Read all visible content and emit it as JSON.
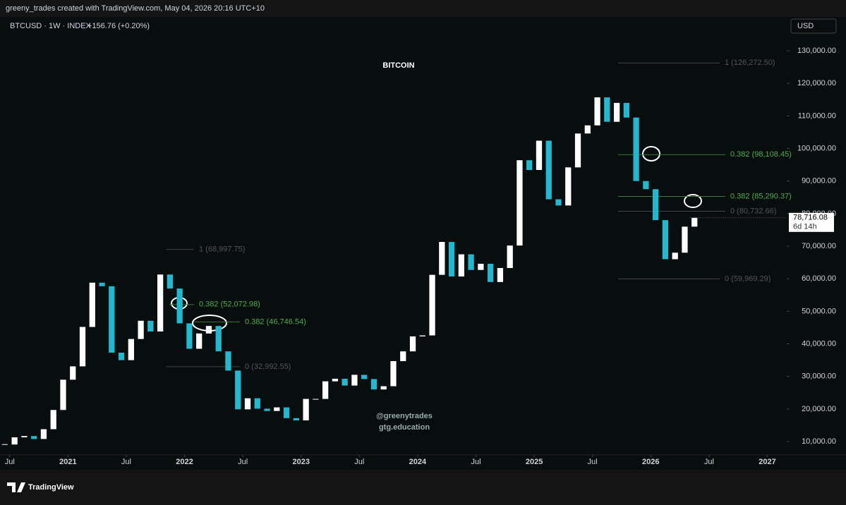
{
  "header": {
    "credit": "greeny_trades created with TradingView.com, May 04, 2026 20:16 UTC+10",
    "symbol": "BTCUSD · 1W · INDEX",
    "change": "+156.76 (+0.20%)",
    "currency": "USD"
  },
  "watermark": {
    "handle": "@greenytrades",
    "site": "gtg.education"
  },
  "footer": {
    "brand": "TradingView"
  },
  "chart_data": {
    "type": "candlestick",
    "title": "BITCOIN",
    "x": [
      "2020-06",
      "2020-07",
      "2020-08",
      "2020-09",
      "2020-10",
      "2020-11",
      "2020-12",
      "2021-01",
      "2021-02",
      "2021-03",
      "2021-04",
      "2021-05",
      "2021-06",
      "2021-07",
      "2021-08",
      "2021-09",
      "2021-10",
      "2021-11",
      "2021-12",
      "2022-01",
      "2022-02",
      "2022-03",
      "2022-04",
      "2022-05",
      "2022-06",
      "2022-07",
      "2022-08",
      "2022-09",
      "2022-10",
      "2022-11",
      "2022-12",
      "2023-01",
      "2023-02",
      "2023-03",
      "2023-04",
      "2023-05",
      "2023-06",
      "2023-07",
      "2023-08",
      "2023-09",
      "2023-10",
      "2023-11",
      "2023-12",
      "2024-01",
      "2024-02",
      "2024-03",
      "2024-04",
      "2024-05",
      "2024-06",
      "2024-07",
      "2024-08",
      "2024-09",
      "2024-10",
      "2024-11",
      "2024-12",
      "2025-01",
      "2025-02",
      "2025-03",
      "2025-04",
      "2025-05",
      "2025-06",
      "2025-07",
      "2025-08",
      "2025-09",
      "2025-10",
      "2025-11",
      "2025-12",
      "2026-01",
      "2026-02",
      "2026-03",
      "2026-04",
      "2026-05"
    ],
    "series": [
      {
        "name": "BTCUSD",
        "up_color": "#ffffff",
        "down_color": "#22b8cf",
        "values": [
          9100,
          11300,
          11700,
          10800,
          13800,
          19700,
          29000,
          33100,
          45200,
          58800,
          57700,
          37300,
          35000,
          41500,
          47100,
          43800,
          61300,
          57000,
          46300,
          38500,
          43200,
          45500,
          37700,
          31800,
          19900,
          23300,
          20100,
          19400,
          20500,
          17200,
          16500,
          23100,
          23100,
          28500,
          29300,
          27200,
          30500,
          29200,
          26000,
          27000,
          34700,
          37700,
          42300,
          42600,
          61200,
          71300,
          60700,
          67500,
          62700,
          64600,
          59000,
          63300,
          70200,
          96400,
          93400,
          102400,
          84400,
          82500,
          94200,
          104600,
          107100,
          115700,
          108200,
          114000,
          109500,
          90000,
          87500,
          78000,
          66000,
          68000,
          76000,
          78716.08
        ]
      }
    ],
    "last_price": {
      "value": 78716.08,
      "label": "78,716.08"
    },
    "countdown": "6d 14h",
    "fib_levels": [
      {
        "value": 68997.75,
        "label": "1 (68,997.75)"
      },
      {
        "value": 52072.98,
        "label": "0.382 (52,072.98)"
      },
      {
        "value": 46746.54,
        "label": "0.382 (46,746.54)"
      },
      {
        "value": 32992.55,
        "label": "0 (32,992.55)"
      },
      {
        "value": 126272.5,
        "label": "1 (126,272.50)"
      },
      {
        "value": 98108.45,
        "label": "0.382 (98,108.45)"
      },
      {
        "value": 85290.37,
        "label": "0.382 (85,290.37)"
      },
      {
        "value": 80732.66,
        "label": "0 (80,732.66)"
      },
      {
        "value": 59969.29,
        "label": "0 (59,969.29)"
      }
    ],
    "xlim": [
      "2020-06",
      "2027-03"
    ],
    "xticks": [
      {
        "value": "2020-07",
        "label": "Jul"
      },
      {
        "value": "2021-01",
        "label": "2021"
      },
      {
        "value": "2021-07",
        "label": "Jul"
      },
      {
        "value": "2022-01",
        "label": "2022"
      },
      {
        "value": "2022-07",
        "label": "Jul"
      },
      {
        "value": "2023-01",
        "label": "2023"
      },
      {
        "value": "2023-07",
        "label": "Jul"
      },
      {
        "value": "2024-01",
        "label": "2024"
      },
      {
        "value": "2024-07",
        "label": "Jul"
      },
      {
        "value": "2025-01",
        "label": "2025"
      },
      {
        "value": "2025-07",
        "label": "Jul"
      },
      {
        "value": "2026-01",
        "label": "2026"
      },
      {
        "value": "2026-07",
        "label": "Jul"
      },
      {
        "value": "2027-01",
        "label": "2027"
      }
    ],
    "ylim": [
      5900,
      140400
    ],
    "yticks": [
      {
        "value": 10000,
        "label": "10,000.00"
      },
      {
        "value": 20000,
        "label": "20,000.00"
      },
      {
        "value": 30000,
        "label": "30,000.00"
      },
      {
        "value": 40000,
        "label": "40,000.00"
      },
      {
        "value": 50000,
        "label": "50,000.00"
      },
      {
        "value": 60000,
        "label": "60,000.00"
      },
      {
        "value": 70000,
        "label": "70,000.00"
      },
      {
        "value": 80000,
        "label": "80,000.00"
      },
      {
        "value": 90000,
        "label": "90,000.00"
      },
      {
        "value": 100000,
        "label": "100,000.00"
      },
      {
        "value": 110000,
        "label": "110,000.00"
      },
      {
        "value": 120000,
        "label": "120,000.00"
      },
      {
        "value": 130000,
        "label": "130,000.00"
      }
    ],
    "grid": false
  }
}
